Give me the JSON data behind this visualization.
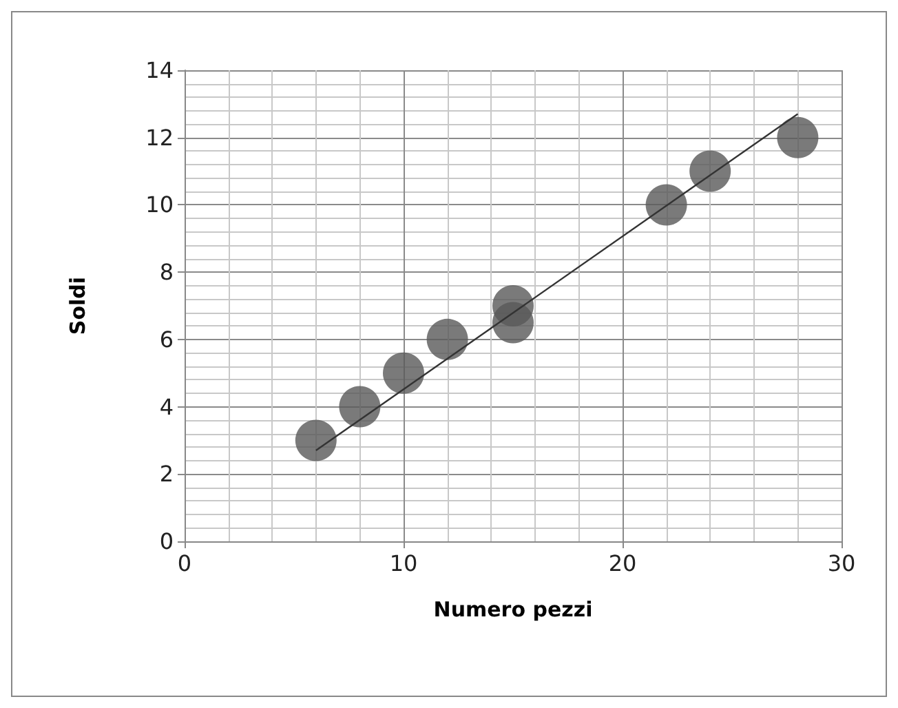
{
  "chart_data": {
    "type": "scatter",
    "xlabel": "Numero pezzi",
    "ylabel": "Soldi",
    "xlim": [
      0,
      30
    ],
    "xticks": [
      0,
      10,
      20,
      30
    ],
    "ylim": [
      0,
      14
    ],
    "yticks": [
      0,
      2,
      4,
      6,
      8,
      10,
      12,
      14
    ],
    "grid": true,
    "marker": "circle",
    "series": [
      {
        "color": "#595959",
        "x": [
          6,
          8,
          10,
          12,
          15,
          15,
          22,
          24,
          28
        ],
        "values": [
          3,
          4,
          5,
          6,
          7,
          6.5,
          10,
          11,
          12
        ]
      },
      {
        "type": "line",
        "color": "#333333",
        "line_style": "solid",
        "marker": "none",
        "x": [
          6,
          28
        ],
        "values": [
          2.7,
          12.7
        ]
      }
    ]
  }
}
